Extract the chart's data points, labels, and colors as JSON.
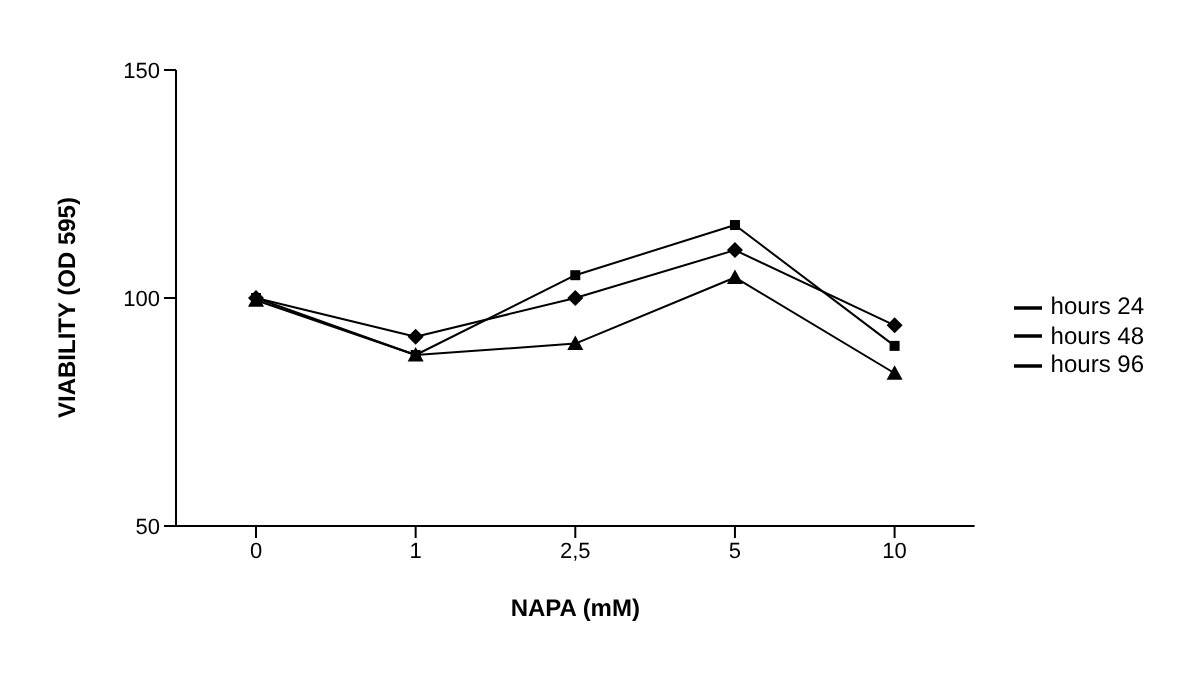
{
  "chart_data": {
    "type": "line",
    "xlabel": "NAPA (mM)",
    "ylabel": "VIABILITY (OD 595)",
    "categories": [
      "0",
      "1",
      "2,5",
      "5",
      "10"
    ],
    "series": [
      {
        "name": "hours 24",
        "color": "#000000",
        "marker": "diamond",
        "values": [
          100,
          91.5,
          100,
          110.5,
          94
        ]
      },
      {
        "name": "hours 48",
        "color": "#000000",
        "marker": "triangle",
        "values": [
          99.5,
          87.5,
          90,
          104.5,
          83.5
        ]
      },
      {
        "name": "hours 96",
        "color": "#000000",
        "marker": "square",
        "values": [
          100,
          87.5,
          105,
          116,
          89.5
        ]
      }
    ],
    "ylim": [
      50,
      150
    ],
    "yticks": [
      50,
      100,
      150
    ],
    "grid": false,
    "legend": "right"
  }
}
